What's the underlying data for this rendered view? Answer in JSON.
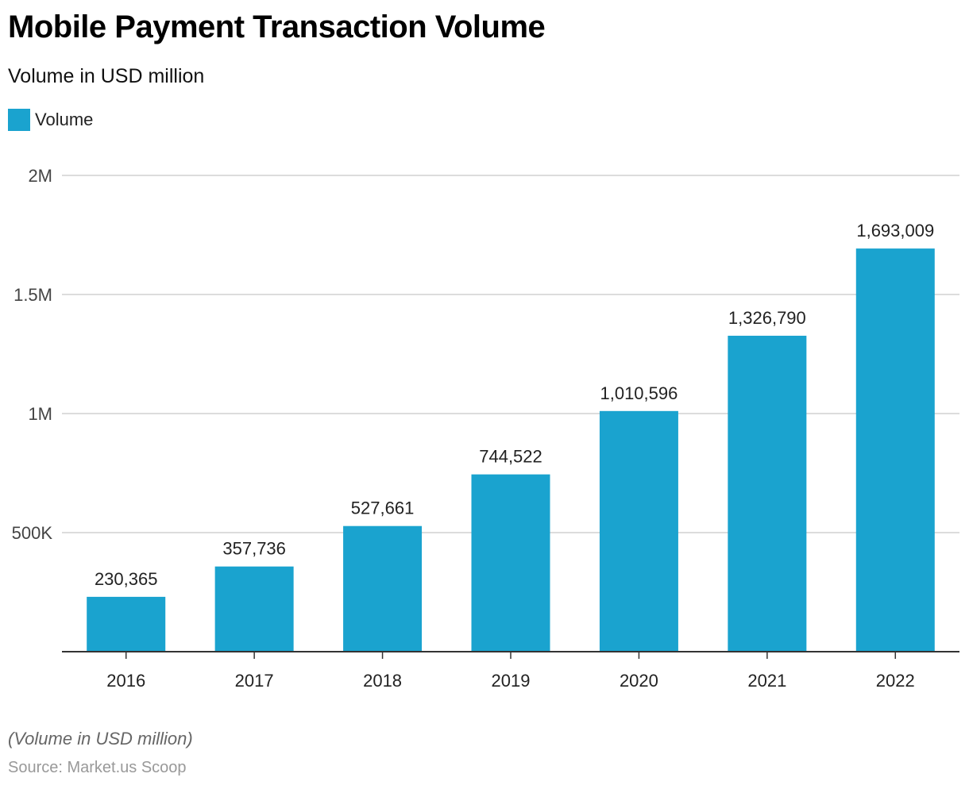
{
  "header": {
    "title": "Mobile Payment Transaction Volume",
    "subtitle": "Volume in USD million"
  },
  "footer": {
    "note": "(Volume in USD million)",
    "source": "Source: Market.us Scoop"
  },
  "colors": {
    "bar": "#1aa3cf",
    "grid": "#d0d0d0",
    "axis": "#333333"
  },
  "chart_data": {
    "type": "bar",
    "categories": [
      "2016",
      "2017",
      "2018",
      "2019",
      "2020",
      "2021",
      "2022"
    ],
    "series": [
      {
        "name": "Volume",
        "values": [
          230365,
          357736,
          527661,
          744522,
          1010596,
          1326790,
          1693009
        ],
        "labels": [
          "230,365",
          "357,736",
          "527,661",
          "744,522",
          "1,010,596",
          "1,326,790",
          "1,693,009"
        ]
      }
    ],
    "ylim": [
      0,
      2000000
    ],
    "yticks": [
      500000,
      1000000,
      1500000,
      2000000
    ],
    "ytick_labels": [
      "500K",
      "1M",
      "1.5M",
      "2M"
    ],
    "grid": true,
    "legend": "top-left"
  }
}
